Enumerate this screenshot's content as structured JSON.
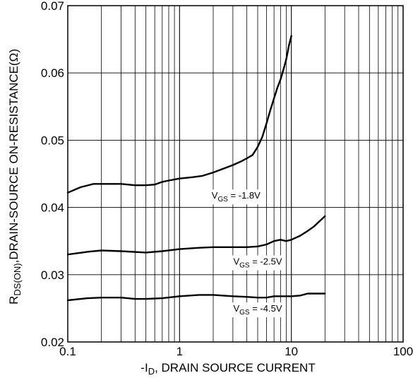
{
  "chart_data": {
    "type": "line",
    "xscale": "log",
    "xlim": [
      0.1,
      100
    ],
    "ylim": [
      0.02,
      0.07
    ],
    "grid": true,
    "xlabel": {
      "prefix": "-I",
      "sub": "D",
      "suffix": ", DRAIN SOURCE CURRENT"
    },
    "ylabel": {
      "prefix": "R",
      "sub": "DS(ON)",
      "suffix": ",DRAIN-SOURCE ON-RESISTANCE(Ω)"
    },
    "xticks": [
      {
        "value": 0.1,
        "label": "0.1"
      },
      {
        "value": 1,
        "label": "1"
      },
      {
        "value": 10,
        "label": "10"
      },
      {
        "value": 100,
        "label": "100"
      }
    ],
    "yticks": [
      {
        "value": 0.02,
        "label": "0.02"
      },
      {
        "value": 0.03,
        "label": "0.03"
      },
      {
        "value": 0.04,
        "label": "0.04"
      },
      {
        "value": 0.05,
        "label": "0.05"
      },
      {
        "value": 0.06,
        "label": "0.06"
      },
      {
        "value": 0.07,
        "label": "0.07"
      }
    ],
    "series": [
      {
        "name": "VGS = -1.8V",
        "label": {
          "prefix": "V",
          "sub": "GS",
          "suffix": " = -1.8V",
          "x": 3.2,
          "y": 0.0413
        },
        "x": [
          0.1,
          0.13,
          0.17,
          0.2,
          0.3,
          0.4,
          0.5,
          0.6,
          0.7,
          0.8,
          1.0,
          1.3,
          1.6,
          2.0,
          2.5,
          3.0,
          3.5,
          4.0,
          4.5,
          5.0,
          5.5,
          6.0,
          6.5,
          7.0,
          7.5,
          8.0,
          8.5,
          9.0,
          9.5,
          10.0
        ],
        "y": [
          0.0422,
          0.043,
          0.0435,
          0.0435,
          0.0435,
          0.0433,
          0.0433,
          0.0434,
          0.0438,
          0.044,
          0.0443,
          0.0445,
          0.0447,
          0.0452,
          0.0458,
          0.0463,
          0.0468,
          0.0473,
          0.0478,
          0.049,
          0.0505,
          0.0525,
          0.0545,
          0.0562,
          0.0578,
          0.059,
          0.0605,
          0.062,
          0.064,
          0.0655
        ]
      },
      {
        "name": "VGS = -2.5V",
        "label": {
          "prefix": "V",
          "sub": "GS",
          "suffix": " = -2.5V",
          "x": 5.0,
          "y": 0.0315
        },
        "x": [
          0.1,
          0.15,
          0.2,
          0.3,
          0.5,
          0.7,
          1.0,
          1.5,
          2.0,
          3.0,
          4.0,
          5.0,
          6.0,
          7.0,
          8.0,
          9.0,
          10.0,
          12.0,
          14.0,
          16.0,
          18.0,
          20.0
        ],
        "y": [
          0.033,
          0.0334,
          0.0336,
          0.0335,
          0.0333,
          0.0335,
          0.0338,
          0.034,
          0.0341,
          0.0341,
          0.0341,
          0.0342,
          0.0345,
          0.035,
          0.0352,
          0.035,
          0.0352,
          0.0358,
          0.0365,
          0.0372,
          0.038,
          0.0387
        ]
      },
      {
        "name": "VGS = -4.5V",
        "label": {
          "prefix": "V",
          "sub": "GS",
          "suffix": " = -4.5V",
          "x": 5.0,
          "y": 0.0245
        },
        "x": [
          0.1,
          0.15,
          0.2,
          0.3,
          0.4,
          0.5,
          0.7,
          1.0,
          1.5,
          2.0,
          3.0,
          4.0,
          5.0,
          6.0,
          7.0,
          8.0,
          10.0,
          12.0,
          14.0,
          16.0,
          20.0
        ],
        "y": [
          0.0262,
          0.0265,
          0.0266,
          0.0266,
          0.0264,
          0.0264,
          0.0265,
          0.0268,
          0.027,
          0.027,
          0.0268,
          0.0267,
          0.0266,
          0.0266,
          0.0268,
          0.0268,
          0.0268,
          0.0269,
          0.0272,
          0.0272,
          0.0272
        ]
      }
    ]
  }
}
